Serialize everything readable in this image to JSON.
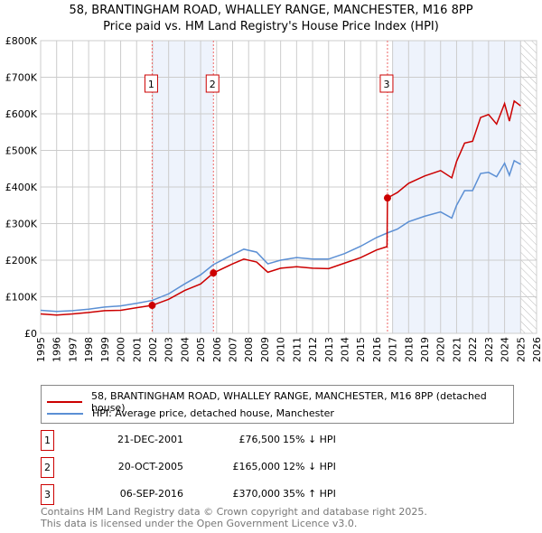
{
  "title": "58, BRANTINGHAM ROAD, WHALLEY RANGE, MANCHESTER, M16 8PP",
  "subtitle": "Price paid vs. HM Land Registry's House Price Index (HPI)",
  "chart_data": {
    "type": "line",
    "xlim": [
      1995,
      2026
    ],
    "ylim": [
      0,
      800000
    ],
    "yticks": [
      {
        "v": 0,
        "label": "£0"
      },
      {
        "v": 100000,
        "label": "£100K"
      },
      {
        "v": 200000,
        "label": "£200K"
      },
      {
        "v": 300000,
        "label": "£300K"
      },
      {
        "v": 400000,
        "label": "£400K"
      },
      {
        "v": 500000,
        "label": "£500K"
      },
      {
        "v": 600000,
        "label": "£600K"
      },
      {
        "v": 700000,
        "label": "£700K"
      },
      {
        "v": 800000,
        "label": "£800K"
      }
    ],
    "xticks": [
      "1995",
      "1996",
      "1997",
      "1998",
      "1999",
      "2000",
      "2001",
      "2002",
      "2003",
      "2004",
      "2005",
      "2006",
      "2007",
      "2008",
      "2009",
      "2010",
      "2011",
      "2012",
      "2013",
      "2014",
      "2015",
      "2016",
      "2017",
      "2018",
      "2019",
      "2020",
      "2021",
      "2022",
      "2023",
      "2024",
      "2025",
      "2026"
    ],
    "grid": true,
    "shaded_ranges": [
      [
        2001.97,
        2005.8
      ],
      [
        2017.0,
        2025.0
      ]
    ],
    "hatched_range": [
      2025.0,
      2026
    ],
    "series": [
      {
        "name": "58, BRANTINGHAM ROAD, WHALLEY RANGE, MANCHESTER, M16 8PP (detached house)",
        "color": "#cc0000",
        "x": [
          1995,
          1996,
          1997,
          1998,
          1999,
          2000,
          2001,
          2001.97,
          2003,
          2004,
          2005,
          2005.8,
          2007,
          2007.7,
          2008.5,
          2009.2,
          2010,
          2011,
          2012,
          2013,
          2014,
          2015,
          2016,
          2016.65,
          2016.68,
          2017.3,
          2018,
          2019,
          2020,
          2020.7,
          2021,
          2021.5,
          2022,
          2022.5,
          2023,
          2023.5,
          2024,
          2024.3,
          2024.6,
          2025
        ],
        "y": [
          53000,
          50000,
          53000,
          57000,
          62000,
          63000,
          70000,
          76500,
          93000,
          117000,
          135000,
          165000,
          190000,
          203000,
          195000,
          167000,
          178000,
          182000,
          178000,
          177000,
          192000,
          207000,
          228000,
          237000,
          370000,
          385000,
          410000,
          430000,
          445000,
          425000,
          470000,
          520000,
          525000,
          590000,
          598000,
          572000,
          628000,
          580000,
          635000,
          622000
        ]
      },
      {
        "name": "HPI: Average price, detached house, Manchester",
        "color": "#5b8fd4",
        "x": [
          1995,
          1996,
          1997,
          1998,
          1999,
          2000,
          2001,
          2001.97,
          2003,
          2004,
          2005,
          2005.8,
          2007,
          2007.7,
          2008.5,
          2009.2,
          2010,
          2011,
          2012,
          2013,
          2014,
          2015,
          2016,
          2016.7,
          2017.3,
          2018,
          2019,
          2020,
          2020.7,
          2021,
          2021.5,
          2022,
          2022.5,
          2023,
          2023.5,
          2024,
          2024.3,
          2024.6,
          2025
        ],
        "y": [
          63000,
          60000,
          62000,
          66000,
          72000,
          75000,
          82000,
          90000,
          108000,
          135000,
          160000,
          188000,
          215000,
          230000,
          222000,
          190000,
          200000,
          207000,
          203000,
          203000,
          218000,
          238000,
          262000,
          275000,
          285000,
          305000,
          320000,
          332000,
          315000,
          350000,
          390000,
          390000,
          437000,
          440000,
          428000,
          465000,
          432000,
          472000,
          462000
        ]
      }
    ],
    "sales": [
      {
        "n": "1",
        "x": 2001.97,
        "y": 76500
      },
      {
        "n": "2",
        "x": 2005.8,
        "y": 165000
      },
      {
        "n": "3",
        "x": 2016.68,
        "y": 370000
      }
    ]
  },
  "legend": {
    "property": "58, BRANTINGHAM ROAD, WHALLEY RANGE, MANCHESTER, M16 8PP (detached house)",
    "hpi": "HPI: Average price, detached house, Manchester"
  },
  "transactions": [
    {
      "n": "1",
      "date": "21-DEC-2001",
      "price": "£76,500",
      "hpi": "15% ↓ HPI"
    },
    {
      "n": "2",
      "date": "20-OCT-2005",
      "price": "£165,000",
      "hpi": "12% ↓ HPI"
    },
    {
      "n": "3",
      "date": "06-SEP-2016",
      "price": "£370,000",
      "hpi": "35% ↑ HPI"
    }
  ],
  "footer": {
    "line1": "Contains HM Land Registry data © Crown copyright and database right 2025.",
    "line2": "This data is licensed under the Open Government Licence v3.0."
  }
}
